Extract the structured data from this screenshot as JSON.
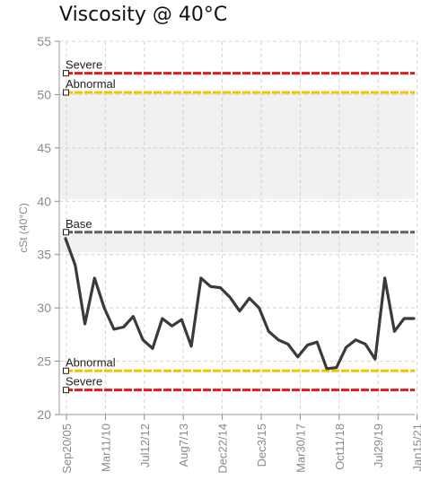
{
  "chart_data": {
    "type": "line",
    "title": "Viscosity @ 40°C",
    "ylabel": "cSt (40°C)",
    "xlabel": "",
    "ylim": [
      20,
      55
    ],
    "yticks": [
      "20",
      "25",
      "30",
      "35",
      "40",
      "45",
      "50",
      "55"
    ],
    "x_tick_labels": [
      "Sep20/05",
      "Mar11/10",
      "Jul12/12",
      "Aug7/13",
      "Dec22/14",
      "Dec3/15",
      "Mar30/17",
      "Oct11/18",
      "Jul29/19",
      "Jan15/21"
    ],
    "grid": true,
    "limits": [
      {
        "label": "Severe",
        "value": 52,
        "color": "#e8191b"
      },
      {
        "label": "Abnormal",
        "value": 50.2,
        "color": "#f4c400"
      },
      {
        "label": "Base",
        "value": 37.1,
        "color": "#606060"
      },
      {
        "label": "Abnormal",
        "value": 24.1,
        "color": "#f4c400"
      },
      {
        "label": "Severe",
        "value": 22.3,
        "color": "#e8191b"
      }
    ],
    "bands": [
      {
        "from": 40.2,
        "to": 50.2
      },
      {
        "from": 35.2,
        "to": 37.1
      }
    ],
    "series": [
      {
        "color": "#3a3a3a",
        "values": [
          36.5,
          34,
          28.5,
          32.8,
          30,
          28,
          28.2,
          29.2,
          27,
          26.2,
          29,
          28.3,
          28.9,
          26.4,
          32.8,
          32,
          31.9,
          31,
          29.7,
          30.9,
          30,
          27.8,
          27,
          26.6,
          25.4,
          26.5,
          26.8,
          24.3,
          24.4,
          26.3,
          27,
          26.6,
          25.2,
          32.8,
          27.8,
          29,
          29
        ]
      }
    ]
  }
}
